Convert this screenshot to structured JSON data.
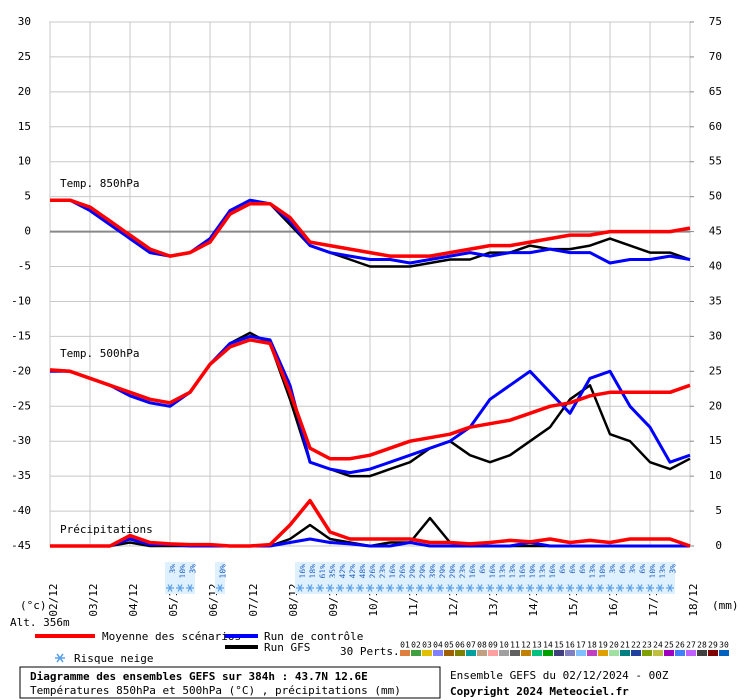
{
  "chart_data": {
    "type": "line",
    "x_unit_label": "(°c)",
    "y2_unit_label": "(mm)",
    "altitude": "Alt. 356m",
    "x": [
      0,
      12,
      24,
      36,
      48,
      60,
      72,
      84,
      96,
      108,
      120,
      132,
      144,
      156,
      168,
      180,
      192,
      204,
      216,
      228,
      240,
      252,
      264,
      276,
      288,
      300,
      312,
      324,
      336,
      348,
      360,
      372,
      384
    ],
    "xlim": [
      0,
      384
    ],
    "xticks": [
      {
        "value": 0,
        "label": "02/12"
      },
      {
        "value": 24,
        "label": "03/12"
      },
      {
        "value": 48,
        "label": "04/12"
      },
      {
        "value": 72,
        "label": "05/12"
      },
      {
        "value": 96,
        "label": "06/12"
      },
      {
        "value": 120,
        "label": "07/12"
      },
      {
        "value": 144,
        "label": "08/12"
      },
      {
        "value": 168,
        "label": "09/12"
      },
      {
        "value": 192,
        "label": "10/12"
      },
      {
        "value": 216,
        "label": "11/12"
      },
      {
        "value": 240,
        "label": "12/12"
      },
      {
        "value": 264,
        "label": "13/12"
      },
      {
        "value": 288,
        "label": "14/12"
      },
      {
        "value": 312,
        "label": "15/12"
      },
      {
        "value": 336,
        "label": "16/12"
      },
      {
        "value": 360,
        "label": "17/12"
      },
      {
        "value": 384,
        "label": "18/12"
      }
    ],
    "ylim": [
      -45,
      30
    ],
    "yticks": [
      30,
      25,
      20,
      15,
      10,
      5,
      0,
      -5,
      -10,
      -15,
      -20,
      -25,
      -30,
      -35,
      -40,
      -45
    ],
    "y2lim": [
      0,
      75
    ],
    "y2ticks": [
      75,
      70,
      65,
      60,
      55,
      50,
      45,
      40,
      35,
      30,
      25,
      20,
      15,
      10,
      5,
      0
    ],
    "grid": true,
    "legend": [
      {
        "name": "Moyenne des scénarios",
        "color": "#ff0000"
      },
      {
        "name": "Run de contrôle",
        "color": "#0000ff"
      },
      {
        "name": "Run GFS",
        "color": "#000000"
      }
    ],
    "panels": [
      {
        "label": "Temp. 850hPa",
        "axis": "y",
        "series": [
          {
            "values": [
              4.5,
              4.5,
              3.5,
              1.5,
              -0.5,
              -2.5,
              -3.5,
              -3,
              -1.5,
              2.5,
              4,
              4,
              2,
              -1.5,
              -2,
              -2.5,
              -3,
              -3.5,
              -3.5,
              -3.5,
              -3,
              -2.5,
              -2,
              -2,
              -1.5,
              -1,
              -0.5,
              -0.5,
              0,
              0,
              0,
              0,
              0.5
            ]
          },
          {
            "values": [
              4.5,
              4.5,
              3,
              1,
              -1,
              -3,
              -3.5,
              -3,
              -1,
              3,
              4.5,
              4,
              1.5,
              -2,
              -3,
              -3.5,
              -4,
              -4,
              -4.5,
              -4,
              -3.5,
              -3,
              -3.5,
              -3,
              -3,
              -2.5,
              -3,
              -3,
              -4.5,
              -4,
              -4,
              -3.5,
              -4
            ]
          },
          {
            "values": [
              4.5,
              4.5,
              3,
              1,
              -1,
              -3,
              -3.5,
              -3,
              -1,
              3,
              4.5,
              4,
              1,
              -2,
              -3,
              -4,
              -5,
              -5,
              -5,
              -4.5,
              -4,
              -4,
              -3,
              -3,
              -2,
              -2.5,
              -2.5,
              -2,
              -1,
              -2,
              -3,
              -3,
              -4
            ]
          }
        ]
      },
      {
        "label": "Temp. 500hPa",
        "axis": "y",
        "series": [
          {
            "values": [
              -19.8,
              -20,
              -21,
              -22,
              -23,
              -24,
              -24.5,
              -23,
              -19,
              -16.5,
              -15.5,
              -16,
              -23,
              -31,
              -32.5,
              -32.5,
              -32,
              -31,
              -30,
              -29.5,
              -29,
              -28,
              -27.5,
              -27,
              -26,
              -25,
              -24.5,
              -23.5,
              -23,
              -23,
              -23,
              -23,
              -22
            ]
          },
          {
            "values": [
              -20,
              -20,
              -21,
              -22,
              -23.5,
              -24.5,
              -25,
              -23,
              -19,
              -16,
              -15,
              -15.5,
              -22,
              -33,
              -34,
              -34.5,
              -34,
              -33,
              -32,
              -31,
              -30,
              -28,
              -24,
              -22,
              -20,
              -23,
              -26,
              -21,
              -20,
              -25,
              -28,
              -33,
              -32
            ]
          },
          {
            "values": [
              -20,
              -20,
              -21,
              -22,
              -23.5,
              -24.5,
              -25,
              -23,
              -19,
              -16,
              -14.5,
              -16,
              -24,
              -33,
              -34,
              -35,
              -35,
              -34,
              -33,
              -31,
              -30,
              -32,
              -33,
              -32,
              -30,
              -28,
              -24,
              -22,
              -29,
              -30,
              -33,
              -34,
              -32.5
            ]
          }
        ]
      },
      {
        "label": "Précipitations",
        "axis": "y2",
        "series": [
          {
            "values": [
              0,
              0,
              0,
              0,
              1.5,
              0.5,
              0.3,
              0.2,
              0.2,
              0,
              0,
              0.2,
              3,
              6.5,
              2,
              1,
              1,
              1,
              1,
              0.5,
              0.5,
              0.3,
              0.5,
              0.8,
              0.6,
              1,
              0.5,
              0.8,
              0.5,
              1,
              1,
              1,
              0
            ]
          },
          {
            "values": [
              0,
              0,
              0,
              0,
              1,
              0.2,
              0.2,
              0,
              0,
              0,
              0,
              0,
              0.5,
              1,
              0.5,
              0.3,
              0,
              0,
              0.5,
              0,
              0,
              0,
              0,
              0,
              0.5,
              0,
              0,
              0,
              0,
              0,
              0,
              0,
              0
            ]
          },
          {
            "values": [
              0,
              0,
              0,
              0,
              0.5,
              0,
              0,
              0,
              0,
              0,
              0,
              0,
              1,
              3,
              1,
              0.5,
              0,
              0.5,
              0.5,
              4,
              0.5,
              0,
              0,
              0,
              0,
              0,
              0,
              0,
              0,
              0,
              0,
              0,
              0
            ]
          }
        ]
      }
    ],
    "snow": {
      "label": "Risque neige",
      "x": [
        72,
        78,
        84,
        102,
        150,
        156,
        162,
        168,
        174,
        180,
        186,
        192,
        198,
        204,
        210,
        216,
        222,
        228,
        234,
        240,
        246,
        252,
        258,
        264,
        270,
        276,
        282,
        288,
        294,
        300,
        306,
        312,
        318,
        324,
        330,
        336,
        342,
        348,
        354,
        360,
        366,
        372
      ],
      "values": [
        3,
        10,
        3,
        10,
        16,
        18,
        61,
        35,
        42,
        42,
        48,
        26,
        23,
        16,
        26,
        29,
        29,
        39,
        29,
        29,
        23,
        16,
        6,
        16,
        13,
        13,
        16,
        19,
        13,
        16,
        6,
        6,
        6,
        13,
        10,
        3,
        6,
        3,
        6,
        10,
        13,
        3
      ],
      "value_labels": [
        "3%",
        "10%",
        "3%",
        "10%",
        "16%",
        "18%",
        "61%",
        "35%",
        "42%",
        "42%",
        "48%",
        "26%",
        "23%",
        "16%",
        "26%",
        "29%",
        "29%",
        "39%",
        "29%",
        "29%",
        "23%",
        "16%",
        "6%",
        "16%",
        "13%",
        "13%",
        "16%",
        "19%",
        "13%",
        "16%",
        "6%",
        "6%",
        "6%",
        "13%",
        "10%",
        "3%",
        "6%",
        "3%",
        "6%",
        "10%",
        "13%",
        "3%"
      ]
    },
    "members": {
      "label": "30 Perts.",
      "ids": [
        "01",
        "02",
        "03",
        "04",
        "05",
        "06",
        "07",
        "08",
        "09",
        "10",
        "11",
        "12",
        "13",
        "14",
        "15",
        "16",
        "17",
        "18",
        "19",
        "20",
        "21",
        "22",
        "23",
        "24",
        "25",
        "26",
        "27",
        "28",
        "29",
        "30"
      ],
      "colors": [
        "#e08040",
        "#40a040",
        "#e0c000",
        "#8080ff",
        "#a06000",
        "#808000",
        "#00a0a0",
        "#c0a080",
        "#ffa0a0",
        "#a0a0a0",
        "#606060",
        "#c08000",
        "#00c080",
        "#00a000",
        "#404080",
        "#8080c0",
        "#80c0ff",
        "#c040c0",
        "#e0a000",
        "#a0e0a0",
        "#008080",
        "#2040a0",
        "#80a000",
        "#c0c040",
        "#a000c0",
        "#4080ff",
        "#c060ff",
        "#404040",
        "#800000",
        "#0060c0"
      ]
    },
    "info": {
      "title": "Diagramme des ensembles GEFS sur 384h : 43.7N 12.6E",
      "subtitle": "Températures 850hPa et 500hPa (°C) , précipitations (mm)",
      "run": "Ensemble GEFS du 02/12/2024 - 00Z",
      "copyright": "Copyright 2024 Meteociel.fr"
    }
  }
}
